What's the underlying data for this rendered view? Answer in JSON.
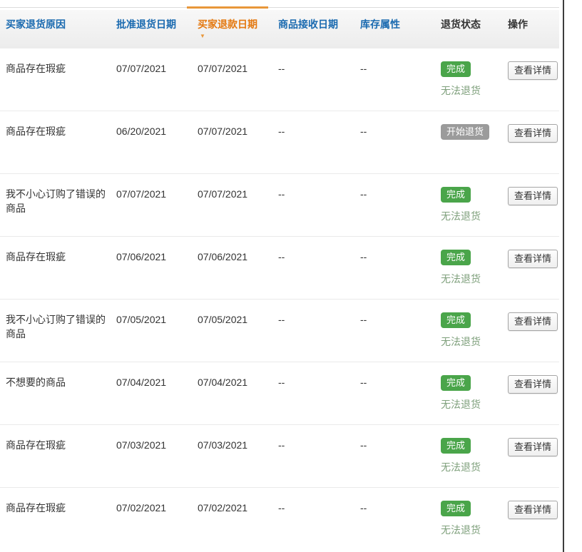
{
  "table": {
    "columns": [
      {
        "label": "买家退货原因",
        "sortable": true,
        "sorted": false
      },
      {
        "label": "批准退货日期",
        "sortable": true,
        "sorted": false
      },
      {
        "label": "买家退款日期",
        "sortable": true,
        "sorted": true,
        "sort_direction": "desc"
      },
      {
        "label": "商品接收日期",
        "sortable": true,
        "sorted": false
      },
      {
        "label": "库存属性",
        "sortable": true,
        "sorted": false
      },
      {
        "label": "退货状态",
        "sortable": false,
        "sorted": false
      },
      {
        "label": "操作",
        "sortable": false,
        "sorted": false
      }
    ],
    "rows": [
      {
        "reason": "商品存在瑕疵",
        "approve_date": "07/07/2021",
        "refund_date": "07/07/2021",
        "receive_date": "--",
        "inventory_attr": "--",
        "status": "完成",
        "status_type": "done",
        "status_note": "无法退货",
        "action": "查看详情"
      },
      {
        "reason": "商品存在瑕疵",
        "approve_date": "06/20/2021",
        "refund_date": "07/07/2021",
        "receive_date": "--",
        "inventory_attr": "--",
        "status": "开始退货",
        "status_type": "started",
        "status_note": "",
        "action": "查看详情"
      },
      {
        "reason": "我不小心订购了错误的商品",
        "approve_date": "07/07/2021",
        "refund_date": "07/07/2021",
        "receive_date": "--",
        "inventory_attr": "--",
        "status": "完成",
        "status_type": "done",
        "status_note": "无法退货",
        "action": "查看详情"
      },
      {
        "reason": "商品存在瑕疵",
        "approve_date": "07/06/2021",
        "refund_date": "07/06/2021",
        "receive_date": "--",
        "inventory_attr": "--",
        "status": "完成",
        "status_type": "done",
        "status_note": "无法退货",
        "action": "查看详情"
      },
      {
        "reason": "我不小心订购了错误的商品",
        "approve_date": "07/05/2021",
        "refund_date": "07/05/2021",
        "receive_date": "--",
        "inventory_attr": "--",
        "status": "完成",
        "status_type": "done",
        "status_note": "无法退货",
        "action": "查看详情"
      },
      {
        "reason": "不想要的商品",
        "approve_date": "07/04/2021",
        "refund_date": "07/04/2021",
        "receive_date": "--",
        "inventory_attr": "--",
        "status": "完成",
        "status_type": "done",
        "status_note": "无法退货",
        "action": "查看详情"
      },
      {
        "reason": "商品存在瑕疵",
        "approve_date": "07/03/2021",
        "refund_date": "07/03/2021",
        "receive_date": "--",
        "inventory_attr": "--",
        "status": "完成",
        "status_type": "done",
        "status_note": "无法退货",
        "action": "查看详情"
      },
      {
        "reason": "商品存在瑕疵",
        "approve_date": "07/02/2021",
        "refund_date": "07/02/2021",
        "receive_date": "--",
        "inventory_attr": "--",
        "status": "完成",
        "status_type": "done",
        "status_note": "无法退货",
        "action": "查看详情"
      }
    ]
  },
  "icons": {
    "sort_desc_arrow": "▼"
  },
  "colors": {
    "header_link_blue": "#1a6ab0",
    "sorted_orange": "#e47911",
    "sort_indicator_orange": "#e8973a",
    "badge_done_green": "#4aa54a",
    "badge_started_gray": "#9b9b9b",
    "status_note_green": "#7fa07c"
  }
}
